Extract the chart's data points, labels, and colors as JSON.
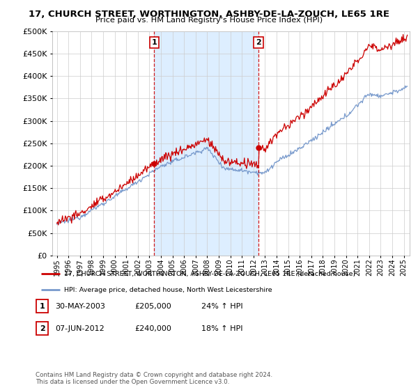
{
  "title": "17, CHURCH STREET, WORTHINGTON, ASHBY-DE-LA-ZOUCH, LE65 1RE",
  "subtitle": "Price paid vs. HM Land Registry's House Price Index (HPI)",
  "hpi_label": "HPI: Average price, detached house, North West Leicestershire",
  "price_label": "17, CHURCH STREET, WORTHINGTON, ASHBY-DE-LA-ZOUCH, LE65 1RE (detached house)",
  "footer": "Contains HM Land Registry data © Crown copyright and database right 2024.\nThis data is licensed under the Open Government Licence v3.0.",
  "sale1_date": 2003.41,
  "sale1_price": 205000,
  "sale2_date": 2012.43,
  "sale2_price": 240000,
  "red_color": "#cc0000",
  "blue_color": "#7799cc",
  "shade_color": "#ddeeff",
  "vline_color": "#cc0000",
  "grid_color": "#cccccc",
  "bg_color": "#ffffff",
  "ylim_max": 500000,
  "xlim_start": 1994.6,
  "xlim_end": 2025.5
}
